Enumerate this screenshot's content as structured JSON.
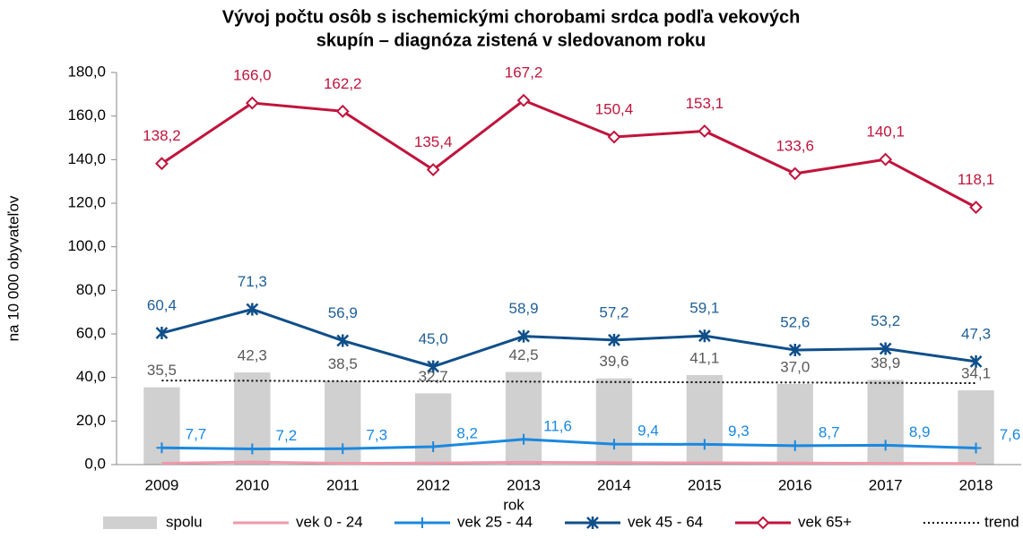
{
  "chart_data": {
    "type": "bar-line",
    "title": [
      "Vývoj počtu osôb s ischemickými chorobami srdca podľa vekových",
      "skupín – diagnóza zistená v sledovanom roku"
    ],
    "y_label": "na 10 000 obyvateľov",
    "x_label": "rok",
    "categories": [
      "2009",
      "2010",
      "2011",
      "2012",
      "2013",
      "2014",
      "2015",
      "2016",
      "2017",
      "2018"
    ],
    "ylim": [
      0,
      180
    ],
    "yticks": [
      {
        "value": 0,
        "label": "0,0"
      },
      {
        "value": 20,
        "label": "20,0"
      },
      {
        "value": 40,
        "label": "40,0"
      },
      {
        "value": 60,
        "label": "60,0"
      },
      {
        "value": 80,
        "label": "80,0"
      },
      {
        "value": 100,
        "label": "100,0"
      },
      {
        "value": 120,
        "label": "120,0"
      },
      {
        "value": 140,
        "label": "140,0"
      },
      {
        "value": 160,
        "label": "160,0"
      },
      {
        "value": 180,
        "label": "180,0"
      }
    ],
    "grid": false,
    "legend": "bottom",
    "series": [
      {
        "name": "spolu",
        "kind": "bar",
        "color": "#d0d0d0",
        "label_color": "#595959",
        "values": [
          35.5,
          42.3,
          38.5,
          32.7,
          42.5,
          39.6,
          41.1,
          37.0,
          38.9,
          34.1
        ],
        "value_labels": [
          "35,5",
          "42,3",
          "38,5",
          "32,7",
          "42,5",
          "39,6",
          "41,1",
          "37,0",
          "38,9",
          "34,1"
        ]
      },
      {
        "name": "vek 0 - 24",
        "kind": "line",
        "color": "#f09aab",
        "values": [
          0.6,
          1.2,
          0.6,
          0.7,
          1.1,
          0.9,
          0.8,
          0.7,
          0.6,
          0.5
        ]
      },
      {
        "name": "vek 25 - 44",
        "kind": "line",
        "marker": "plus",
        "color": "#1a88df",
        "label_color": "#1a88df",
        "values": [
          7.7,
          7.2,
          7.3,
          8.2,
          11.6,
          9.4,
          9.3,
          8.7,
          8.9,
          7.6
        ],
        "value_labels": [
          "7,7",
          "7,2",
          "7,3",
          "8,2",
          "11,6",
          "9,4",
          "9,3",
          "8,7",
          "8,9",
          "7,6"
        ]
      },
      {
        "name": "vek 45 - 64",
        "kind": "line",
        "marker": "star",
        "color": "#0f4f8a",
        "label_color": "#1f5f96",
        "values": [
          60.4,
          71.3,
          56.9,
          45.0,
          58.9,
          57.2,
          59.1,
          52.6,
          53.2,
          47.3
        ],
        "value_labels": [
          "60,4",
          "71,3",
          "56,9",
          "45,0",
          "58,9",
          "57,2",
          "59,1",
          "52,6",
          "53,2",
          "47,3"
        ]
      },
      {
        "name": "vek 65+",
        "kind": "line",
        "marker": "diamond",
        "color": "#c0143c",
        "label_color": "#c0143c",
        "values": [
          138.2,
          166.0,
          162.2,
          135.4,
          167.2,
          150.4,
          153.1,
          133.6,
          140.1,
          118.1
        ],
        "value_labels": [
          "138,2",
          "166,0",
          "162,2",
          "135,4",
          "167,2",
          "150,4",
          "153,1",
          "133,6",
          "140,1",
          "118,1"
        ]
      },
      {
        "name": "trend",
        "kind": "dotted",
        "color": "#000000",
        "values": [
          38.6,
          38.5,
          38.3,
          38.2,
          38.1,
          37.9,
          37.8,
          37.7,
          37.5,
          37.4
        ]
      }
    ]
  }
}
